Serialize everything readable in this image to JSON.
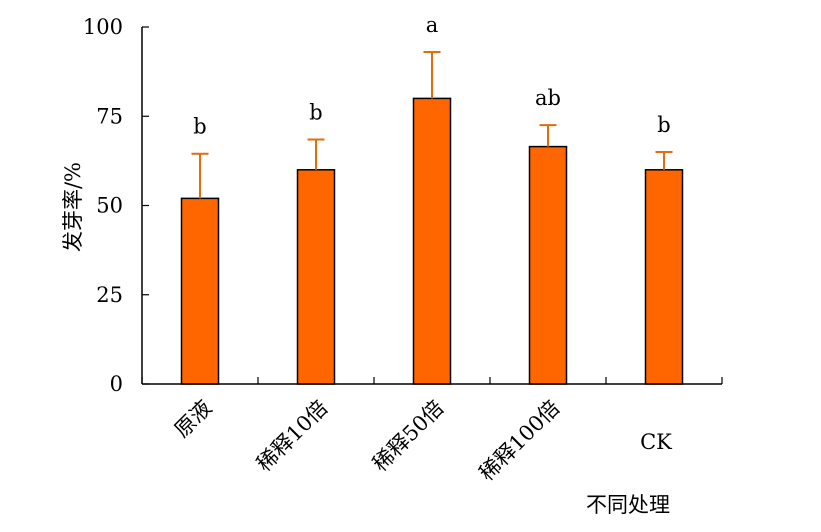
{
  "chart_data": {
    "type": "bar",
    "categories": [
      "原液",
      "稀释10倍",
      "稀释50倍",
      "稀释100倍",
      "CK"
    ],
    "values": [
      52,
      60,
      80,
      66.5,
      60
    ],
    "error_upper": [
      64.5,
      68.5,
      93,
      72.5,
      65
    ],
    "significance": [
      "b",
      "b",
      "a",
      "ab",
      "b"
    ],
    "xlabel": "不同处理",
    "ylabel": "发芽率/%",
    "ylim": [
      0,
      100
    ],
    "yticks": [
      "0",
      "25",
      "50",
      "75",
      "100"
    ],
    "legend": "none",
    "grid": false
  },
  "colors": {
    "bar_fill": "#ff6600",
    "bar_stroke": "#000000",
    "error_bar": "#e46c0a",
    "axis": "#000000"
  }
}
